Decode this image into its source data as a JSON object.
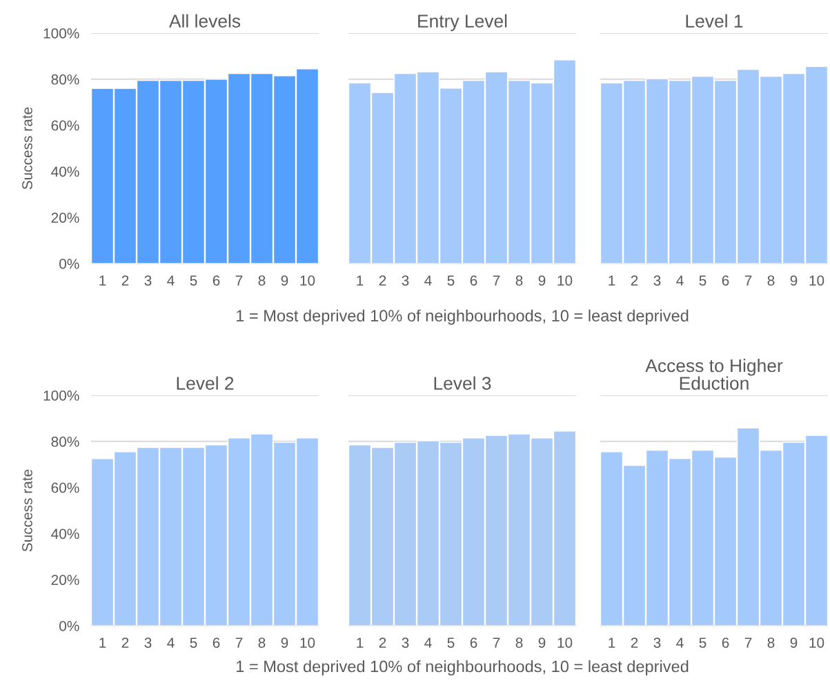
{
  "chart_data": [
    {
      "type": "bar",
      "title": "All levels",
      "ylabel": "Success rate",
      "categories": [
        "1",
        "2",
        "3",
        "4",
        "5",
        "6",
        "7",
        "8",
        "9",
        "10"
      ],
      "values": [
        76,
        76,
        79.5,
        79.5,
        79.5,
        80,
        82.5,
        82.5,
        81.5,
        84.5
      ],
      "color": "#559ffe",
      "ylim": [
        0,
        100
      ],
      "yticks": [
        {
          "value": 0,
          "label": "0%"
        },
        {
          "value": 20,
          "label": "20%"
        },
        {
          "value": 40,
          "label": "40%"
        },
        {
          "value": 60,
          "label": "60%"
        },
        {
          "value": 80,
          "label": "80%"
        },
        {
          "value": 100,
          "label": "100%"
        }
      ],
      "grid": "y"
    },
    {
      "type": "bar",
      "title": "Entry Level",
      "xlabel": "1 = Most deprived 10% of neighbourhoods, 10 = least deprived",
      "categories": [
        "1",
        "2",
        "3",
        "4",
        "5",
        "6",
        "7",
        "8",
        "9",
        "10"
      ],
      "values": [
        78.4,
        74.2,
        82.5,
        83.2,
        76.1,
        79.5,
        83.2,
        79.5,
        78.4,
        88.4
      ],
      "color": "#a3c9fd",
      "ylim": [
        0,
        100
      ],
      "yticks": [
        {
          "value": 0,
          "label": null
        },
        {
          "value": 20,
          "label": null
        },
        {
          "value": 40,
          "label": null
        },
        {
          "value": 60,
          "label": null
        },
        {
          "value": 80,
          "label": null
        },
        {
          "value": 100,
          "label": null
        }
      ],
      "grid": "y",
      "tick_labels": "x"
    },
    {
      "type": "bar",
      "title": "Level 1",
      "categories": [
        "1",
        "2",
        "3",
        "4",
        "5",
        "6",
        "7",
        "8",
        "9",
        "10"
      ],
      "values": [
        78.4,
        79.5,
        80.2,
        79.5,
        81.3,
        79.5,
        84.3,
        81.3,
        82.5,
        85.5
      ],
      "color": "#a3c9fd",
      "ylim": [
        0,
        100
      ],
      "yticks": [
        {
          "value": 0,
          "label": null
        },
        {
          "value": 20,
          "label": null
        },
        {
          "value": 40,
          "label": null
        },
        {
          "value": 60,
          "label": null
        },
        {
          "value": 80,
          "label": null
        },
        {
          "value": 100,
          "label": null
        }
      ],
      "grid": "y",
      "tick_labels": "x"
    },
    {
      "type": "bar",
      "title": "Level 2",
      "ylabel": "Success rate",
      "categories": [
        "1",
        "2",
        "3",
        "4",
        "5",
        "6",
        "7",
        "8",
        "9",
        "10"
      ],
      "values": [
        72.5,
        75.5,
        77.4,
        77.4,
        77.4,
        78.5,
        81.5,
        83.2,
        79.6,
        81.5
      ],
      "color": "#a3c9fd",
      "ylim": [
        0,
        100
      ],
      "yticks": [
        {
          "value": 0,
          "label": "0%"
        },
        {
          "value": 20,
          "label": "20%"
        },
        {
          "value": 40,
          "label": "40%"
        },
        {
          "value": 60,
          "label": "60%"
        },
        {
          "value": 80,
          "label": "80%"
        },
        {
          "value": 100,
          "label": "100%"
        }
      ],
      "grid": "y"
    },
    {
      "type": "bar",
      "title": "Level 3",
      "xlabel": "1 = Most deprived 10% of neighbourhoods, 10 = least deprived",
      "categories": [
        "1",
        "2",
        "3",
        "4",
        "5",
        "6",
        "7",
        "8",
        "9",
        "10"
      ],
      "values": [
        78.5,
        77.4,
        79.6,
        80.3,
        79.6,
        81.5,
        82.6,
        83.2,
        81.5,
        84.5
      ],
      "color": "#abcbf7",
      "ylim": [
        0,
        100
      ],
      "yticks": [
        {
          "value": 0,
          "label": null
        },
        {
          "value": 20,
          "label": null
        },
        {
          "value": 40,
          "label": null
        },
        {
          "value": 60,
          "label": null
        },
        {
          "value": 80,
          "label": null
        },
        {
          "value": 100,
          "label": null
        }
      ],
      "grid": "y",
      "tick_labels": "x"
    },
    {
      "type": "bar",
      "title": "Access to Higher\nEduction",
      "categories": [
        "1",
        "2",
        "3",
        "4",
        "5",
        "6",
        "7",
        "8",
        "9",
        "10"
      ],
      "values": [
        75.5,
        69.6,
        76.2,
        72.6,
        76.2,
        73.2,
        85.8,
        76.2,
        79.6,
        82.6
      ],
      "color": "#a3c9fd",
      "ylim": [
        0,
        100
      ],
      "yticks": [
        {
          "value": 0,
          "label": null
        },
        {
          "value": 20,
          "label": null
        },
        {
          "value": 40,
          "label": null
        },
        {
          "value": 60,
          "label": null
        },
        {
          "value": 80,
          "label": null
        },
        {
          "value": 100,
          "label": null
        }
      ],
      "grid": "y",
      "tick_labels": "x"
    }
  ]
}
